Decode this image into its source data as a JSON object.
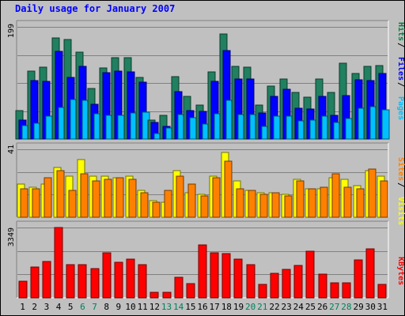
{
  "title": "Daily usage for January 2007",
  "chart_data": [
    {
      "type": "bar",
      "name": "hits-files-pages",
      "y_max_label": "199",
      "ylim": [
        0,
        199
      ],
      "categories": [
        "1",
        "2",
        "3",
        "4",
        "5",
        "6",
        "7",
        "8",
        "9",
        "10",
        "11",
        "12",
        "13",
        "14",
        "15",
        "16",
        "17",
        "18",
        "19",
        "20",
        "21",
        "22",
        "23",
        "24",
        "25",
        "26",
        "27",
        "28",
        "29",
        "30",
        "31"
      ],
      "weekend_categories": [
        "6",
        "7",
        "13",
        "14",
        "20",
        "21",
        "27",
        "28"
      ],
      "legend": [
        {
          "label": "Hits",
          "color": "#008040"
        },
        {
          "label": "Files",
          "color": "#0000ff"
        },
        {
          "label": "Pages",
          "color": "#00c0ff"
        }
      ],
      "series": [
        {
          "name": "Hits",
          "color": "#208060",
          "values": [
            50,
            121,
            128,
            180,
            176,
            154,
            89,
            126,
            144,
            145,
            110,
            34,
            42,
            111,
            76,
            60,
            119,
            187,
            129,
            128,
            60,
            94,
            106,
            82,
            74,
            106,
            82,
            134,
            117,
            129,
            131
          ]
        },
        {
          "name": "Files",
          "color": "#0000ff",
          "values": [
            34,
            104,
            102,
            156,
            110,
            129,
            62,
            118,
            120,
            119,
            101,
            30,
            23,
            84,
            51,
            49,
            103,
            157,
            107,
            106,
            46,
            75,
            88,
            55,
            53,
            75,
            42,
            77,
            105,
            104,
            116
          ]
        },
        {
          "name": "Pages",
          "color": "#00c0ff",
          "values": [
            24,
            28,
            41,
            56,
            70,
            69,
            45,
            42,
            42,
            46,
            48,
            10,
            20,
            43,
            38,
            26,
            45,
            69,
            44,
            43,
            23,
            41,
            41,
            32,
            34,
            40,
            30,
            37,
            54,
            58,
            52
          ]
        }
      ]
    },
    {
      "type": "bar",
      "name": "visits-sites",
      "y_max_label": "41",
      "ylim": [
        0,
        41
      ],
      "legend": [
        {
          "label": "Sites",
          "color": "#ff8000"
        },
        {
          "label": "Visits",
          "color": "#ffff00"
        }
      ],
      "series": [
        {
          "name": "Visits",
          "color": "#ffff00",
          "values": [
            20,
            18,
            20,
            30,
            25,
            35,
            25,
            25,
            24,
            25,
            16,
            10,
            9,
            28,
            15,
            14,
            25,
            39,
            22,
            16,
            15,
            15,
            14,
            23,
            17,
            17,
            24,
            23,
            19,
            28,
            25
          ]
        },
        {
          "name": "Sites",
          "color": "#ff8000",
          "values": [
            17,
            17,
            24,
            28,
            16,
            26,
            22,
            23,
            24,
            23,
            15,
            9,
            16,
            25,
            20,
            13,
            24,
            34,
            17,
            16,
            14,
            15,
            13,
            22,
            17,
            18,
            26,
            18,
            17,
            29,
            22
          ]
        }
      ]
    },
    {
      "type": "bar",
      "name": "kbytes",
      "y_max_label": "3349",
      "ylim": [
        0,
        3349
      ],
      "legend": [
        {
          "label": "KBytes",
          "color": "#ff0000"
        }
      ],
      "series": [
        {
          "name": "KBytes",
          "color": "#ff0000",
          "values": [
            790,
            1480,
            1740,
            3349,
            1590,
            1590,
            1380,
            2150,
            1690,
            1860,
            1570,
            270,
            270,
            980,
            670,
            2510,
            2150,
            2120,
            1830,
            1590,
            650,
            1160,
            1370,
            1560,
            2230,
            1130,
            710,
            700,
            1810,
            2320,
            630
          ]
        }
      ]
    }
  ]
}
